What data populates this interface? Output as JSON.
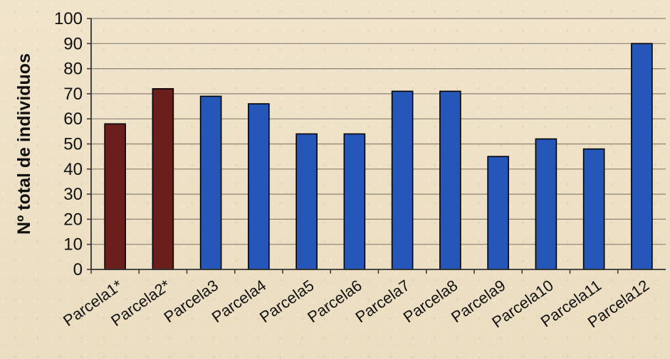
{
  "chart_data": {
    "type": "bar",
    "title": "",
    "xlabel": "",
    "ylabel": "Nº total de individuos",
    "categories": [
      "Parcela1*",
      "Parcela2*",
      "Parcela3",
      "Parcela4",
      "Parcela5",
      "Parcela6",
      "Parcela7",
      "Parcela8",
      "Parcela9",
      "Parcela10",
      "Parcela11",
      "Parcela12"
    ],
    "values": [
      58,
      72,
      69,
      66,
      54,
      54,
      71,
      71,
      45,
      52,
      48,
      90
    ],
    "bar_colors": [
      "#6b1f1c",
      "#6b1f1c",
      "#2457b8",
      "#2457b8",
      "#2457b8",
      "#2457b8",
      "#2457b8",
      "#2457b8",
      "#2457b8",
      "#2457b8",
      "#2457b8",
      "#2457b8"
    ],
    "ylim": [
      0,
      100
    ],
    "yticks": [
      0,
      10,
      20,
      30,
      40,
      50,
      60,
      70,
      80,
      90,
      100
    ],
    "grid": true
  }
}
